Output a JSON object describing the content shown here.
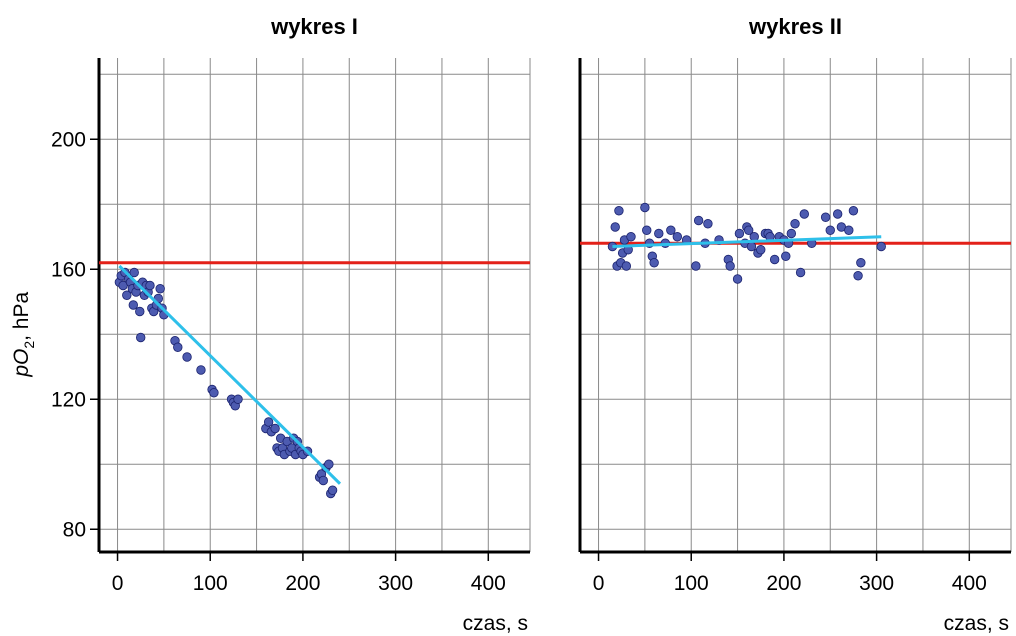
{
  "chart_data": [
    {
      "type": "scatter",
      "title": "wykres I",
      "xlabel": "czas, s",
      "ylabel": {
        "italic": "pO",
        "sub": "2",
        "rest": ", hPa"
      },
      "xlim": [
        -20,
        445
      ],
      "ylim": [
        73,
        225
      ],
      "xticks": [
        0,
        100,
        200,
        300,
        400
      ],
      "yticks": [
        80,
        120,
        160,
        200
      ],
      "x_grid": [
        0,
        50,
        100,
        150,
        200,
        250,
        300,
        350,
        400,
        445
      ],
      "y_grid": [
        80,
        100,
        120,
        140,
        160,
        180,
        200,
        220
      ],
      "reference_line": {
        "y": 162,
        "color": "#e32119"
      },
      "fit_line": {
        "points": [
          [
            2,
            161
          ],
          [
            240,
            94
          ]
        ],
        "color": "#2ec0ea"
      },
      "marker_color": "#4d5bb0",
      "points": [
        [
          2,
          156
        ],
        [
          4,
          158
        ],
        [
          6,
          155
        ],
        [
          8,
          159
        ],
        [
          10,
          152
        ],
        [
          12,
          157
        ],
        [
          14,
          156
        ],
        [
          16,
          154
        ],
        [
          17,
          149
        ],
        [
          18,
          159
        ],
        [
          20,
          153
        ],
        [
          22,
          155
        ],
        [
          24,
          147
        ],
        [
          25,
          139
        ],
        [
          27,
          156
        ],
        [
          29,
          152
        ],
        [
          31,
          155
        ],
        [
          33,
          153
        ],
        [
          35,
          155
        ],
        [
          37,
          148
        ],
        [
          39,
          147
        ],
        [
          42,
          149
        ],
        [
          44,
          151
        ],
        [
          46,
          154
        ],
        [
          48,
          148
        ],
        [
          50,
          146
        ],
        [
          62,
          138
        ],
        [
          65,
          136
        ],
        [
          75,
          133
        ],
        [
          90,
          129
        ],
        [
          102,
          123
        ],
        [
          104,
          122
        ],
        [
          123,
          120
        ],
        [
          125,
          119
        ],
        [
          127,
          118
        ],
        [
          130,
          120
        ],
        [
          160,
          111
        ],
        [
          163,
          113
        ],
        [
          166,
          110
        ],
        [
          170,
          111
        ],
        [
          172,
          105
        ],
        [
          174,
          104
        ],
        [
          176,
          108
        ],
        [
          178,
          105
        ],
        [
          180,
          103
        ],
        [
          183,
          107
        ],
        [
          186,
          104
        ],
        [
          188,
          105
        ],
        [
          190,
          108
        ],
        [
          192,
          103
        ],
        [
          194,
          107
        ],
        [
          196,
          105
        ],
        [
          198,
          104
        ],
        [
          200,
          103
        ],
        [
          205,
          104
        ],
        [
          218,
          96
        ],
        [
          220,
          97
        ],
        [
          222,
          95
        ],
        [
          225,
          99
        ],
        [
          228,
          100
        ],
        [
          230,
          91
        ],
        [
          232,
          92
        ]
      ]
    },
    {
      "type": "scatter",
      "title": "wykres II",
      "xlabel": "czas, s",
      "xlim": [
        -20,
        445
      ],
      "ylim": [
        73,
        225
      ],
      "xticks": [
        0,
        100,
        200,
        300,
        400
      ],
      "yticks": [],
      "x_grid": [
        0,
        50,
        100,
        150,
        200,
        250,
        300,
        350,
        400,
        445
      ],
      "y_grid": [
        80,
        100,
        120,
        140,
        160,
        180,
        200,
        220
      ],
      "reference_line": {
        "y": 168,
        "color": "#e32119"
      },
      "fit_line": {
        "points": [
          [
            15,
            167
          ],
          [
            305,
            170
          ]
        ],
        "color": "#2ec0ea"
      },
      "marker_color": "#4d5bb0",
      "points": [
        [
          15,
          167
        ],
        [
          18,
          173
        ],
        [
          20,
          161
        ],
        [
          22,
          178
        ],
        [
          24,
          162
        ],
        [
          26,
          165
        ],
        [
          28,
          169
        ],
        [
          30,
          161
        ],
        [
          32,
          166
        ],
        [
          35,
          170
        ],
        [
          50,
          179
        ],
        [
          52,
          172
        ],
        [
          55,
          168
        ],
        [
          58,
          164
        ],
        [
          60,
          162
        ],
        [
          65,
          171
        ],
        [
          72,
          168
        ],
        [
          78,
          172
        ],
        [
          85,
          170
        ],
        [
          95,
          169
        ],
        [
          105,
          161
        ],
        [
          108,
          175
        ],
        [
          115,
          168
        ],
        [
          118,
          174
        ],
        [
          130,
          169
        ],
        [
          140,
          163
        ],
        [
          142,
          161
        ],
        [
          150,
          157
        ],
        [
          152,
          171
        ],
        [
          158,
          168
        ],
        [
          160,
          173
        ],
        [
          162,
          172
        ],
        [
          165,
          167
        ],
        [
          168,
          170
        ],
        [
          172,
          165
        ],
        [
          175,
          166
        ],
        [
          180,
          171
        ],
        [
          183,
          171
        ],
        [
          185,
          170
        ],
        [
          190,
          163
        ],
        [
          195,
          170
        ],
        [
          200,
          169
        ],
        [
          202,
          164
        ],
        [
          205,
          168
        ],
        [
          208,
          171
        ],
        [
          212,
          174
        ],
        [
          218,
          159
        ],
        [
          222,
          177
        ],
        [
          230,
          168
        ],
        [
          245,
          176
        ],
        [
          250,
          172
        ],
        [
          258,
          177
        ],
        [
          262,
          173
        ],
        [
          270,
          172
        ],
        [
          275,
          178
        ],
        [
          280,
          158
        ],
        [
          283,
          162
        ],
        [
          305,
          167
        ]
      ]
    }
  ]
}
